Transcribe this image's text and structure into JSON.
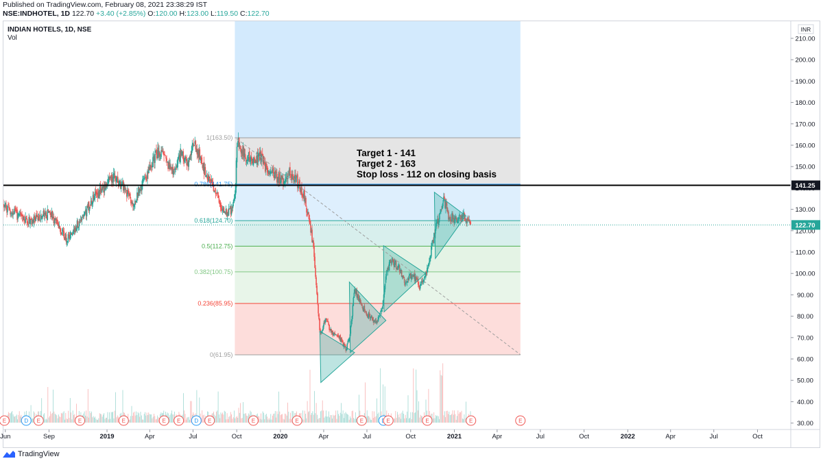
{
  "header": {
    "published": "Published on TradingView.com, February 08, 2021 23:38:29 IST",
    "symbol": "NSE:INDHOTEL, 1D",
    "last": "122.70",
    "change": "+3.40 (+2.85%)",
    "o_label": "O:",
    "o_value": "120.00",
    "h_label": "H:",
    "h_value": "123.00",
    "l_label": "L:",
    "l_value": "119.50",
    "c_label": "C:",
    "c_value": "122.70"
  },
  "legend": {
    "ticker": "INDIAN HOTELS, 1D, NSE",
    "volume": "Vol"
  },
  "footer": {
    "brand": "TradingView"
  },
  "colors": {
    "up": "#26a69a",
    "down": "#ef5350",
    "fib_blue": "#2196f3",
    "fib_grey": "#9e9e9e",
    "fib_teal": "#26a69a",
    "fib_green": "#4caf50",
    "fib_red": "#f44336",
    "price_tag": "#26a69a",
    "level_tag": "#131722"
  },
  "chart_data": {
    "type": "candlestick",
    "currency": "INR",
    "ylim": [
      27,
      218
    ],
    "y_ticks": [
      210,
      200,
      190,
      180,
      170,
      160,
      150,
      140,
      130,
      120,
      110,
      100,
      90,
      80,
      70,
      60,
      50,
      40,
      30
    ],
    "y_tick_labels": [
      "210.00",
      "200.00",
      "190.00",
      "180.00",
      "170.00",
      "160.00",
      "150.00",
      "140.00",
      "130.00",
      "120.00",
      "110.00",
      "100.00",
      "90.00",
      "80.00",
      "70.00",
      "60.00",
      "50.00",
      "40.00",
      "30.00"
    ],
    "x_range": [
      "2018-05-28",
      "2022-12-10"
    ],
    "x_ticks": [
      {
        "date": "2018-06-01",
        "label": "Jun",
        "bold": false
      },
      {
        "date": "2018-09-01",
        "label": "Sep",
        "bold": false
      },
      {
        "date": "2019-01-01",
        "label": "2019",
        "bold": true
      },
      {
        "date": "2019-04-01",
        "label": "Apr",
        "bold": false
      },
      {
        "date": "2019-07-01",
        "label": "Jul",
        "bold": false
      },
      {
        "date": "2019-10-01",
        "label": "Oct",
        "bold": false
      },
      {
        "date": "2020-01-01",
        "label": "2020",
        "bold": true
      },
      {
        "date": "2020-04-01",
        "label": "Apr",
        "bold": false
      },
      {
        "date": "2020-07-01",
        "label": "Jul",
        "bold": false
      },
      {
        "date": "2020-10-01",
        "label": "Oct",
        "bold": false
      },
      {
        "date": "2021-01-01",
        "label": "2021",
        "bold": true
      },
      {
        "date": "2021-04-01",
        "label": "Apr",
        "bold": false
      },
      {
        "date": "2021-07-01",
        "label": "Jul",
        "bold": false
      },
      {
        "date": "2021-10-01",
        "label": "Oct",
        "bold": false
      },
      {
        "date": "2022-01-01",
        "label": "2022",
        "bold": true
      },
      {
        "date": "2022-04-01",
        "label": "Apr",
        "bold": false
      },
      {
        "date": "2022-07-01",
        "label": "Jul",
        "bold": false
      },
      {
        "date": "2022-10-01",
        "label": "Oct",
        "bold": false
      }
    ],
    "price_path": [
      [
        "2018-05-28",
        132
      ],
      [
        "2018-06-15",
        129
      ],
      [
        "2018-07-05",
        126
      ],
      [
        "2018-07-25",
        124
      ],
      [
        "2018-08-15",
        127
      ],
      [
        "2018-09-05",
        128
      ],
      [
        "2018-09-25",
        120
      ],
      [
        "2018-10-10",
        116
      ],
      [
        "2018-10-25",
        121
      ],
      [
        "2018-11-15",
        128
      ],
      [
        "2018-12-05",
        136
      ],
      [
        "2018-12-25",
        140
      ],
      [
        "2019-01-15",
        145
      ],
      [
        "2019-02-05",
        141
      ],
      [
        "2019-02-25",
        133
      ],
      [
        "2019-03-15",
        141
      ],
      [
        "2019-04-05",
        151
      ],
      [
        "2019-04-20",
        158
      ],
      [
        "2019-05-05",
        152
      ],
      [
        "2019-05-20",
        147
      ],
      [
        "2019-06-05",
        156
      ],
      [
        "2019-06-20",
        152
      ],
      [
        "2019-07-05",
        161
      ],
      [
        "2019-07-20",
        151
      ],
      [
        "2019-08-05",
        144
      ],
      [
        "2019-08-20",
        136
      ],
      [
        "2019-09-05",
        128
      ],
      [
        "2019-09-20",
        130
      ],
      [
        "2019-09-27",
        134
      ],
      [
        "2019-10-02",
        162
      ],
      [
        "2019-10-20",
        155
      ],
      [
        "2019-11-05",
        153
      ],
      [
        "2019-11-20",
        155
      ],
      [
        "2019-12-05",
        148
      ],
      [
        "2019-12-20",
        146
      ],
      [
        "2020-01-05",
        143
      ],
      [
        "2020-01-20",
        147
      ],
      [
        "2020-02-05",
        143
      ],
      [
        "2020-02-20",
        136
      ],
      [
        "2020-03-01",
        125
      ],
      [
        "2020-03-10",
        113
      ],
      [
        "2020-03-18",
        90
      ],
      [
        "2020-03-24",
        72
      ],
      [
        "2020-04-05",
        78
      ],
      [
        "2020-04-20",
        72
      ],
      [
        "2020-05-05",
        70
      ],
      [
        "2020-05-18",
        64
      ],
      [
        "2020-05-25",
        70
      ],
      [
        "2020-06-05",
        92
      ],
      [
        "2020-06-20",
        85
      ],
      [
        "2020-07-05",
        80
      ],
      [
        "2020-07-20",
        77
      ],
      [
        "2020-08-01",
        82
      ],
      [
        "2020-08-10",
        100
      ],
      [
        "2020-08-20",
        106
      ],
      [
        "2020-09-05",
        103
      ],
      [
        "2020-09-20",
        96
      ],
      [
        "2020-10-05",
        100
      ],
      [
        "2020-10-20",
        94
      ],
      [
        "2020-11-01",
        98
      ],
      [
        "2020-11-10",
        108
      ],
      [
        "2020-11-20",
        118
      ],
      [
        "2020-12-01",
        128
      ],
      [
        "2020-12-10",
        134
      ],
      [
        "2020-12-20",
        127
      ],
      [
        "2021-01-05",
        125
      ],
      [
        "2021-01-20",
        127
      ],
      [
        "2021-02-05",
        122.7
      ]
    ],
    "horizontal_line": {
      "value": 141.25,
      "label": "141.25",
      "color": "#000000"
    },
    "last_price": {
      "value": 122.7,
      "label": "122.70"
    },
    "fibonacci": {
      "start_date": "2019-09-27",
      "end_date": "2021-05-20",
      "levels": [
        {
          "ratio": "1",
          "value": 163.5,
          "label": "1(163.50)",
          "color": "#9e9e9e",
          "fill": "rgba(180,180,180,0.35)"
        },
        {
          "ratio": "0.786",
          "value": 141.75,
          "label": "0.786(141.75)",
          "color": "#2196f3",
          "fill": "rgba(33,150,243,0.15)"
        },
        {
          "ratio": "0.618",
          "value": 124.7,
          "label": "0.618(124.70)",
          "color": "#26a69a",
          "fill": "rgba(38,166,154,0.18)"
        },
        {
          "ratio": "0.5",
          "value": 112.75,
          "label": "0.5(112.75)",
          "color": "#4caf50",
          "fill": "rgba(76,175,80,0.15)"
        },
        {
          "ratio": "0.382",
          "value": 100.75,
          "label": "0.382(100.75)",
          "color": "#81c784",
          "fill": "rgba(129,199,132,0.18)"
        },
        {
          "ratio": "0.236",
          "value": 85.95,
          "label": "0.236(85.95)",
          "color": "#f44336",
          "fill": "rgba(244,67,54,0.18)"
        },
        {
          "ratio": "0",
          "value": 61.95,
          "label": "0(61.95)",
          "color": "#9e9e9e",
          "fill": ""
        }
      ],
      "extension_fill": {
        "from": 163.5,
        "to": 218,
        "color": "rgba(33,150,243,0.20)"
      }
    },
    "trend_line": {
      "from": [
        "2019-10-01",
        163
      ],
      "to": [
        "2021-05-20",
        62
      ],
      "style": "dashed"
    },
    "patterns": [
      {
        "points": [
          [
            "2020-03-24",
            73
          ],
          [
            "2020-06-05",
            63
          ],
          [
            "2020-03-26",
            49
          ]
        ]
      },
      {
        "points": [
          [
            "2020-05-25",
            96
          ],
          [
            "2020-08-10",
            78
          ],
          [
            "2020-05-27",
            63
          ]
        ]
      },
      {
        "points": [
          [
            "2020-08-05",
            113
          ],
          [
            "2020-11-01",
            100
          ],
          [
            "2020-08-06",
            82
          ]
        ]
      },
      {
        "points": [
          [
            "2020-11-20",
            138
          ],
          [
            "2021-01-25",
            127
          ],
          [
            "2020-11-22",
            107
          ]
        ]
      }
    ],
    "annotations": [
      "Target 1 - 141",
      "Target 2 - 163",
      "Stop loss - 112 on closing basis"
    ],
    "event_markers": [
      {
        "date": "2018-05-30",
        "letter": "E"
      },
      {
        "date": "2018-07-15",
        "letter": "D"
      },
      {
        "date": "2018-08-10",
        "letter": "E"
      },
      {
        "date": "2018-11-05",
        "letter": "E"
      },
      {
        "date": "2019-02-05",
        "letter": "E"
      },
      {
        "date": "2019-05-01",
        "letter": "E"
      },
      {
        "date": "2019-06-01",
        "letter": "E"
      },
      {
        "date": "2019-07-08",
        "letter": "D"
      },
      {
        "date": "2019-08-05",
        "letter": "E"
      },
      {
        "date": "2019-11-05",
        "letter": "E"
      },
      {
        "date": "2020-02-05",
        "letter": "E"
      },
      {
        "date": "2020-06-20",
        "letter": "E"
      },
      {
        "date": "2020-08-05",
        "letter": "D"
      },
      {
        "date": "2020-08-15",
        "letter": "E"
      },
      {
        "date": "2020-11-05",
        "letter": "E"
      },
      {
        "date": "2021-02-05",
        "letter": "E"
      },
      {
        "date": "2021-05-20",
        "letter": "E"
      }
    ]
  }
}
